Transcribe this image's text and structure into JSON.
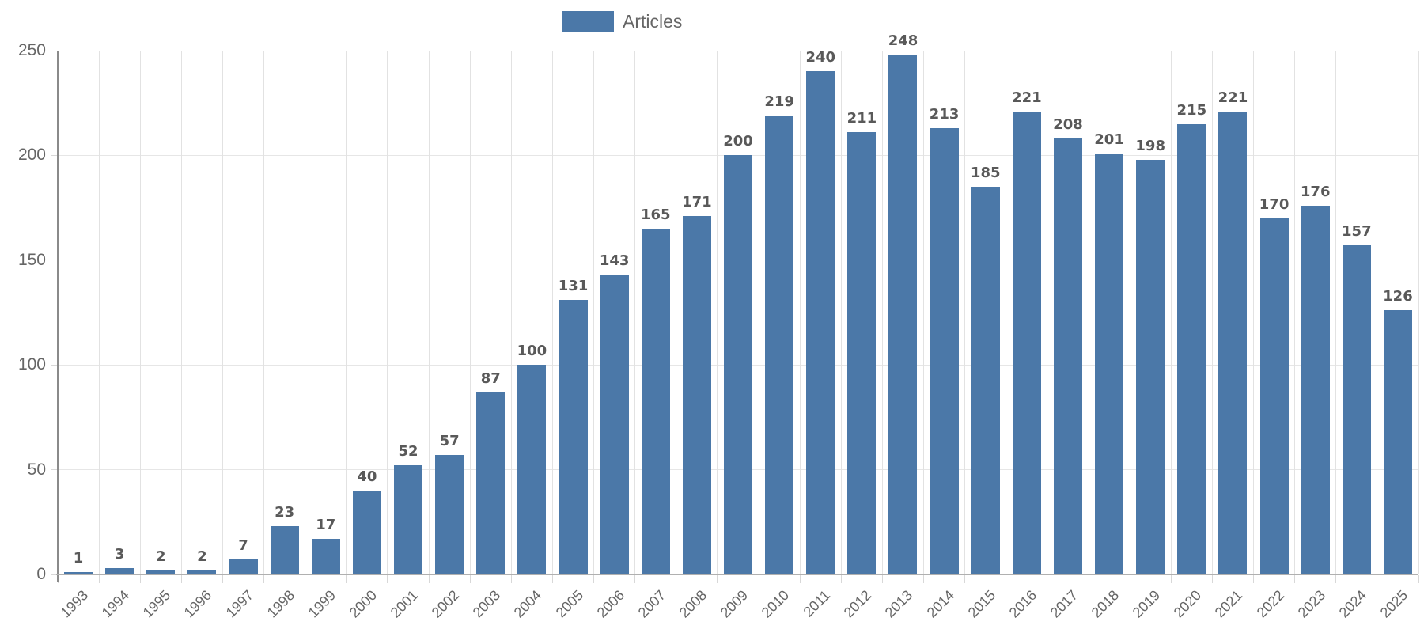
{
  "chart_data": {
    "type": "bar",
    "title": "",
    "xlabel": "",
    "ylabel": "",
    "categories": [
      "1993",
      "1994",
      "1995",
      "1996",
      "1997",
      "1998",
      "1999",
      "2000",
      "2001",
      "2002",
      "2003",
      "2004",
      "2005",
      "2006",
      "2007",
      "2008",
      "2009",
      "2010",
      "2011",
      "2012",
      "2013",
      "2014",
      "2015",
      "2016",
      "2017",
      "2018",
      "2019",
      "2020",
      "2021",
      "2022",
      "2023",
      "2024",
      "2025"
    ],
    "series": [
      {
        "name": "Articles",
        "values": [
          1,
          3,
          2,
          2,
          7,
          23,
          17,
          40,
          52,
          57,
          87,
          100,
          131,
          143,
          165,
          171,
          200,
          219,
          240,
          211,
          248,
          213,
          185,
          221,
          208,
          201,
          198,
          215,
          221,
          170,
          176,
          157,
          126
        ]
      }
    ],
    "ylim": [
      0,
      250
    ],
    "yticks": [
      0,
      50,
      100,
      150,
      200,
      250
    ],
    "grid": true,
    "legend_position": "top-center",
    "data_labels": true,
    "bar_color": "#4b78a8"
  },
  "colors": {
    "bar": "#4b78a8",
    "tick_label": "#666666",
    "value_label": "#595959",
    "gridline": "#e6e6e6",
    "axis_line": "#8a8a8a"
  }
}
